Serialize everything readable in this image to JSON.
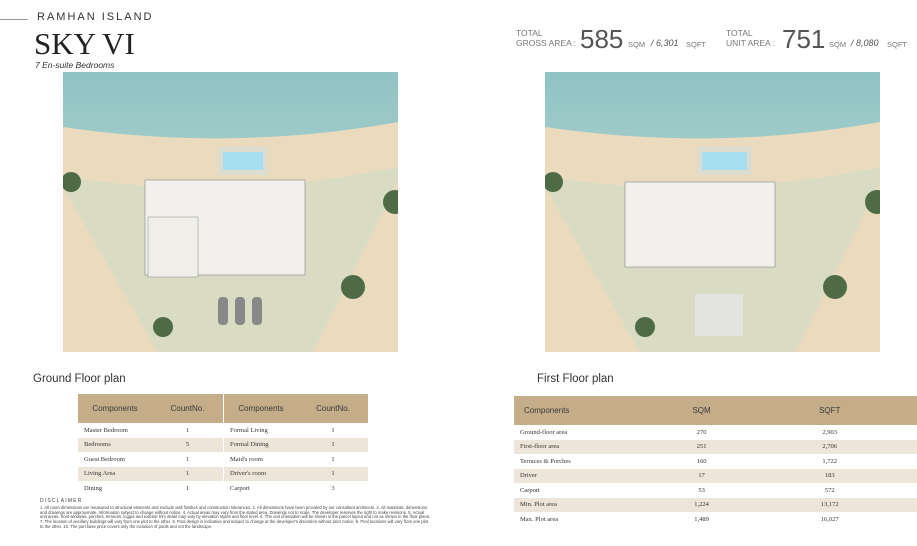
{
  "header": {
    "location": "RAMHAN ISLAND",
    "title": "SKY VI",
    "subtitle": "7 En-suite Bedrooms"
  },
  "totals": [
    {
      "label1": "TOTAL",
      "label2": "GROSS AREA :",
      "sqm": "585",
      "sqm_unit": "SQM",
      "sqft": "/ 6,301",
      "sqft_unit": "SQFT"
    },
    {
      "label1": "TOTAL",
      "label2": "UNIT AREA :",
      "sqm": "751",
      "sqm_unit": "SQM",
      "sqft": "/ 8,080",
      "sqft_unit": "SQFT"
    }
  ],
  "ground_floor": {
    "title": "Ground Floor plan",
    "tables": [
      {
        "header": [
          "Components",
          "CountNo."
        ],
        "rows": [
          [
            "Master Bedroom",
            "1"
          ],
          [
            "Bedrooms",
            "5"
          ],
          [
            "Guest Bedroom",
            "1"
          ],
          [
            "Living Area",
            "1"
          ],
          [
            "Dining",
            "1"
          ]
        ]
      },
      {
        "header": [
          "Components",
          "CountNo."
        ],
        "rows": [
          [
            "Formal Living",
            "1"
          ],
          [
            "Formal Dining",
            "1"
          ],
          [
            "Maid's room",
            "1"
          ],
          [
            "Driver's room",
            "1"
          ],
          [
            "Carport",
            "3"
          ]
        ]
      }
    ]
  },
  "first_floor": {
    "title": "First Floor plan",
    "table": {
      "header": [
        "Components",
        "SQM",
        "SQFT"
      ],
      "rows": [
        [
          "Ground-floor area",
          "270",
          "2,903"
        ],
        [
          "First-floor area",
          "251",
          "2,706"
        ],
        [
          "Terraces & Porches",
          "160",
          "1,722"
        ],
        [
          "Driver",
          "17",
          "183"
        ],
        [
          "Carport",
          "53",
          "572"
        ],
        [
          "Min. Plot area",
          "1,224",
          "13,172"
        ],
        [
          "Max. Plot area",
          "1,489",
          "16,027"
        ]
      ]
    }
  },
  "disclaimer": {
    "title": "DISCLAIMER",
    "text": "1. All room dimensions are measured to structural elements and exclude wall finishes and construction tolerances. 2. All dimensions have been provided by our consultant architects. 3. All materials, dimensions and drawings are approximate. Information subject to change without notice. 4. Actual areas may vary from the stated area. Drawings not to scale. The developer reserves the right to make revisions. 5. Actual unit areas, front windows, porches, terraces, loggia and exterior trim detail may vary by elevation styles and floor level. 6. The unit orientation will be shown in the parcel layout and not as shown in the floor plans. 7. The location of ancillary buildings will vary from one plot to the other. 8. Pool design is indicative and subject to change at the developer's discretion without prior notice. 9. Pool locations will vary from one plot to the other. 10. The purchase price covers only the inclusion of pools and not the landscape."
  }
}
